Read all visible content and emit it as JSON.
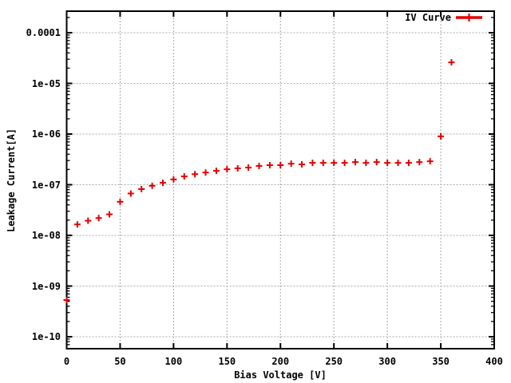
{
  "chart_data": {
    "type": "scatter",
    "title": "",
    "xlabel": "Bias Voltage [V]",
    "ylabel": "Leakage Current[A]",
    "legend_position": "top-right-inside",
    "grid": true,
    "marker": "plus",
    "y_scale": "log",
    "xlim": [
      0,
      400
    ],
    "ylim": [
      5.8e-11,
      0.00026
    ],
    "x_tick_labels": [
      "0",
      "50",
      "100",
      "150",
      "200",
      "250",
      "300",
      "350",
      "400"
    ],
    "x_tick_values": [
      0,
      50,
      100,
      150,
      200,
      250,
      300,
      350,
      400
    ],
    "y_tick_labels": [
      "0.0001",
      "1e-05",
      "1e-06",
      "1e-07",
      "1e-08",
      "1e-09",
      "1e-10"
    ],
    "y_tick_values": [
      0.0001,
      1e-05,
      1e-06,
      1e-07,
      1e-08,
      1e-09,
      1e-10
    ],
    "x": [
      0,
      10,
      20,
      30,
      40,
      50,
      60,
      70,
      80,
      90,
      100,
      110,
      120,
      130,
      140,
      150,
      160,
      170,
      180,
      190,
      200,
      210,
      220,
      230,
      240,
      250,
      260,
      270,
      280,
      290,
      300,
      310,
      320,
      330,
      340,
      350,
      360
    ],
    "series": [
      {
        "name": "IV Curve",
        "color": "#e60000",
        "values": [
          5.3e-10,
          1.65e-08,
          1.95e-08,
          2.2e-08,
          2.6e-08,
          4.6e-08,
          6.7e-08,
          8.2e-08,
          9.5e-08,
          1.09e-07,
          1.27e-07,
          1.46e-07,
          1.62e-07,
          1.74e-07,
          1.88e-07,
          2.02e-07,
          2.1e-07,
          2.18e-07,
          2.34e-07,
          2.43e-07,
          2.43e-07,
          2.6e-07,
          2.52e-07,
          2.7e-07,
          2.7e-07,
          2.7e-07,
          2.7e-07,
          2.8e-07,
          2.7e-07,
          2.8e-07,
          2.7e-07,
          2.7e-07,
          2.7e-07,
          2.8e-07,
          2.9e-07,
          9e-07,
          2.6e-05
        ]
      }
    ],
    "colors": {
      "marker": "#e60000",
      "grid": "#a8a8a8",
      "axis": "#000000",
      "text": "#000000",
      "background": "#ffffff"
    }
  }
}
